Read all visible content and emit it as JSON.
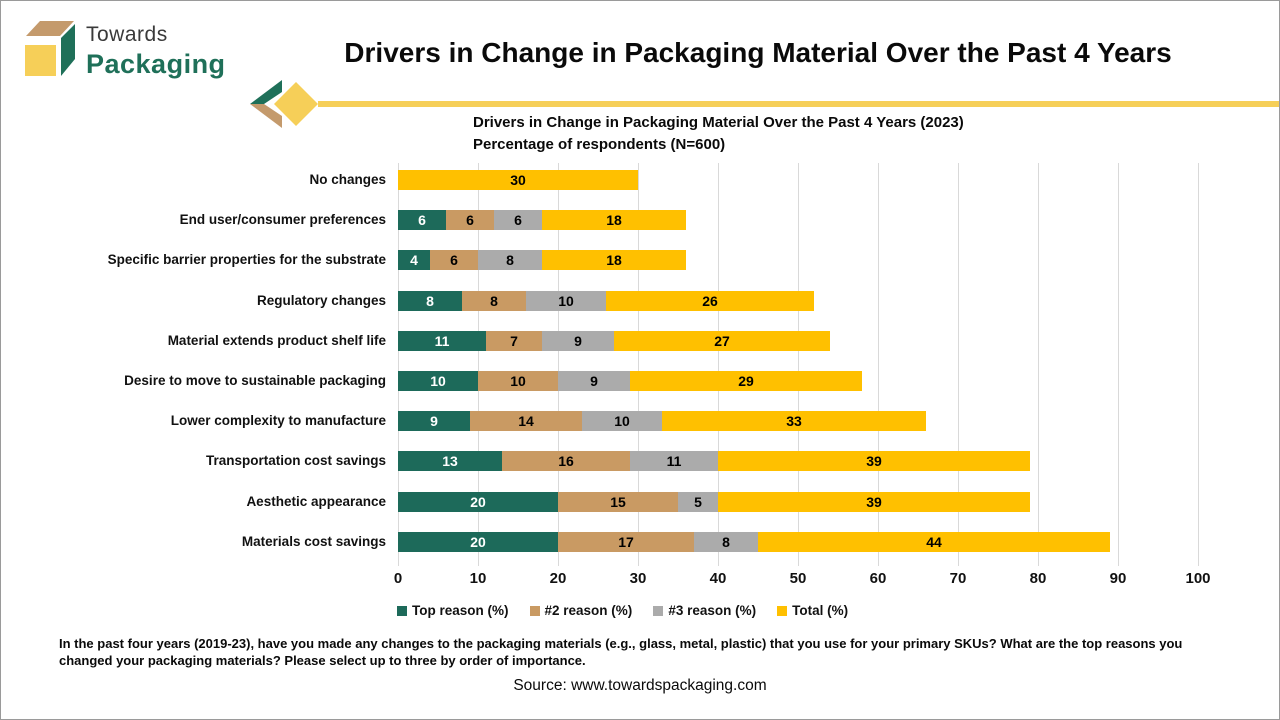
{
  "header": {
    "logo_line1": "Towards",
    "logo_line2": "Packaging",
    "title": "Drivers in Change in Packaging Material Over the Past 4 Years"
  },
  "chart": {
    "title_line1": "Drivers in Change in Packaging Material Over the Past 4 Years (2023)",
    "title_line2": "Percentage of respondents (N=600)"
  },
  "chart_data": {
    "type": "bar",
    "orientation": "horizontal",
    "stacked": true,
    "title": "Drivers in Change in Packaging Material Over the Past 4 Years (2023)",
    "subtitle": "Percentage of respondents (N=600)",
    "categories": [
      "No changes",
      "End user/consumer preferences",
      "Specific barrier properties for the substrate",
      "Regulatory changes",
      "Material extends product shelf life",
      "Desire to move to sustainable packaging",
      "Lower complexity to manufacture",
      "Transportation cost savings",
      "Aesthetic appearance",
      "Materials cost savings"
    ],
    "series": [
      {
        "name": "Top reason (%)",
        "color": "#1D6A5A",
        "label_color": "#FFFFFF",
        "values": [
          0,
          6,
          4,
          8,
          11,
          10,
          9,
          13,
          20,
          20
        ]
      },
      {
        "name": "#2 reason (%)",
        "color": "#C99A63",
        "label_color": "#000000",
        "values": [
          0,
          6,
          6,
          8,
          7,
          10,
          14,
          16,
          15,
          17
        ]
      },
      {
        "name": "#3 reason (%)",
        "color": "#ABABAB",
        "label_color": "#000000",
        "values": [
          0,
          6,
          8,
          10,
          9,
          9,
          10,
          11,
          5,
          8
        ]
      },
      {
        "name": "Total (%)",
        "color": "#FFC000",
        "label_color": "#000000",
        "values": [
          30,
          18,
          18,
          26,
          27,
          29,
          33,
          39,
          39,
          44
        ]
      }
    ],
    "xlim": [
      0,
      100
    ],
    "xticks": [
      0,
      10,
      20,
      30,
      40,
      50,
      60,
      70,
      80,
      90,
      100
    ],
    "grid": "vertical-gridlines",
    "legend_position": "bottom"
  },
  "footer": {
    "note": "In the past four years (2019-23), have you made any changes to the packaging materials (e.g., glass, metal, plastic) that you use for your primary SKUs? What are the top reasons you changed your packaging materials? Please select up to three by order of importance.",
    "source": "Source: www.towardspackaging.com"
  },
  "colors": {
    "top_reason": "#1D6A5A",
    "second_reason": "#C99A63",
    "third_reason": "#ABABAB",
    "total": "#FFC000",
    "accent_soft_yellow": "#F6CF58",
    "accent_tan": "#C49A6C",
    "accent_teal": "#1F7059",
    "gridline": "#D9D9D9"
  }
}
